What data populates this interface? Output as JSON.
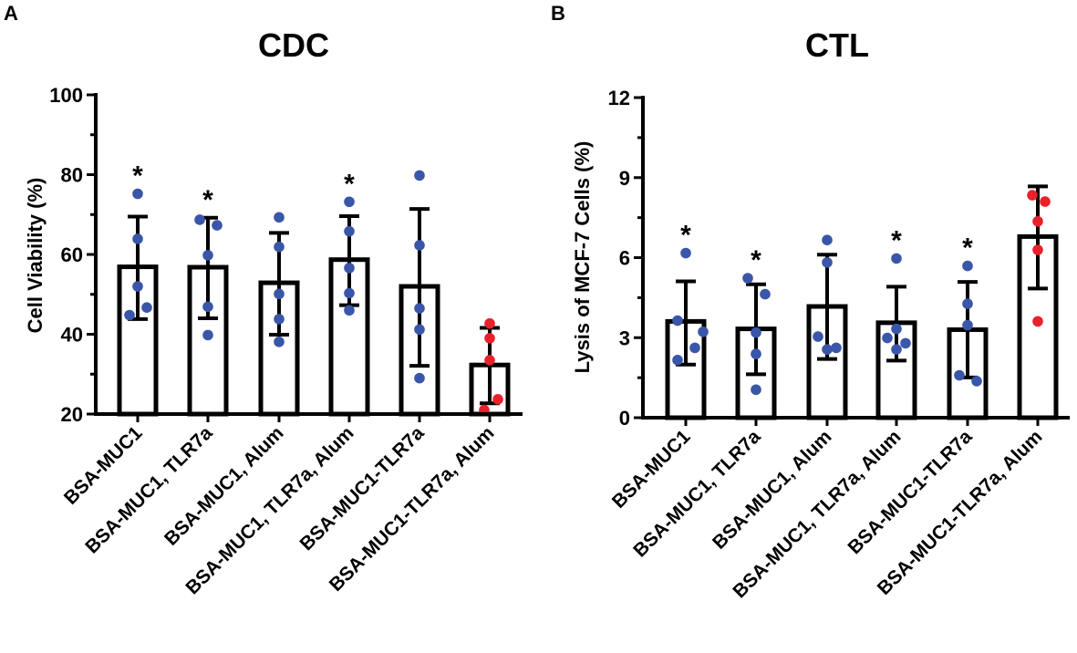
{
  "colors": {
    "blue": "#3a56a8",
    "red": "#e8212b",
    "axis": "#000000"
  },
  "chart_data": [
    {
      "panel": "A",
      "type": "bar",
      "title": "CDC",
      "ylabel": "Cell Viability (%)",
      "ylim": [
        20,
        100
      ],
      "yticks": [
        20,
        40,
        60,
        80,
        100
      ],
      "yminor": [
        30,
        50,
        70,
        90
      ],
      "categories": [
        "BSA-MUC1",
        "BSA-MUC1, TLR7a",
        "BSA-MUC1, Alum",
        "BSA-MUC1, TLR7a, Alum",
        "BSA-MUC1-TLR7a",
        "BSA-MUC1-TLR7a, Alum"
      ],
      "values": [
        56.9,
        56.8,
        52.9,
        58.7,
        52.0,
        32.3
      ],
      "error_upper": [
        69.5,
        69.2,
        65.4,
        69.6,
        71.4,
        41.6
      ],
      "error_lower": [
        43.8,
        44.0,
        39.9,
        47.3,
        32.1,
        22.7
      ],
      "points": [
        [
          75.2,
          63.9,
          52.0,
          44.8,
          46.7
        ],
        [
          68.7,
          67.3,
          59.8,
          46.9,
          39.8
        ],
        [
          69.3,
          61.9,
          50.1,
          43.8,
          38.1
        ],
        [
          73.2,
          65.8,
          56.6,
          50.3,
          46.0
        ],
        [
          79.8,
          62.3,
          46.5,
          41.2,
          29.0
        ],
        [
          42.7,
          39.0,
          33.5,
          23.7,
          21.0
        ]
      ],
      "point_colors": [
        "blue",
        "blue",
        "blue",
        "blue",
        "blue",
        "red"
      ],
      "significance": [
        "*",
        "*",
        "",
        "*",
        "",
        ""
      ]
    },
    {
      "panel": "B",
      "type": "bar",
      "title": "CTL",
      "ylabel": "Lysis of MCF-7 Cells (%)",
      "ylim": [
        0,
        12
      ],
      "yticks": [
        0,
        3,
        6,
        9,
        12
      ],
      "yminor": [
        1.5,
        4.5,
        7.5,
        10.5
      ],
      "categories": [
        "BSA-MUC1",
        "BSA-MUC1, TLR7a",
        "BSA-MUC1, Alum",
        "BSA-MUC1, TLR7a, Alum",
        "BSA-MUC1-TLR7a",
        "BSA-MUC1-TLR7a, Alum"
      ],
      "values": [
        3.61,
        3.33,
        4.17,
        3.56,
        3.3,
        6.79
      ],
      "error_upper": [
        5.11,
        5.0,
        6.11,
        4.91,
        5.09,
        8.67
      ],
      "error_lower": [
        1.99,
        1.63,
        2.2,
        2.14,
        1.51,
        4.84
      ],
      "points": [
        [
          6.17,
          3.64,
          3.22,
          2.62,
          2.16
        ],
        [
          5.23,
          4.63,
          3.19,
          2.39,
          1.05
        ],
        [
          6.66,
          5.82,
          3.04,
          2.56,
          2.62
        ],
        [
          5.97,
          3.33,
          2.99,
          2.79,
          2.56
        ],
        [
          5.69,
          4.27,
          3.47,
          1.59,
          1.37
        ],
        [
          8.34,
          8.1,
          7.36,
          6.29,
          3.61
        ]
      ],
      "point_colors": [
        "blue",
        "blue",
        "blue",
        "blue",
        "blue",
        "red"
      ],
      "significance": [
        "*",
        "*",
        "",
        "*",
        "*",
        ""
      ]
    }
  ]
}
